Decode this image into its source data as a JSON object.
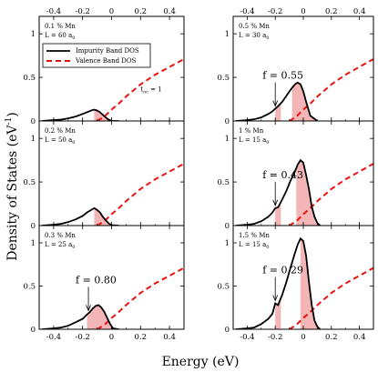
{
  "xlabel": "Energy (eV)",
  "ylabel": "Density of States (eV",
  "ylabel_sup": "-1",
  "ylabel_close": ")",
  "legend": {
    "impurity": "Impurity Band DOS",
    "valence": "Valence Band DOS"
  },
  "colors": {
    "impurity": "#000000",
    "valence": "#e8130f",
    "fill": "#f3b5b5"
  },
  "chart_data": [
    {
      "id": "p1",
      "type": "line",
      "col": 0,
      "row": 0,
      "xlim": [
        -0.5,
        0.5
      ],
      "ylim": [
        0,
        1.2
      ],
      "xticks": [
        "-0.4",
        "-0.2",
        "0",
        "0.2",
        "0.4"
      ],
      "yticks": [
        "0",
        "0.5",
        "1"
      ],
      "annotation_lines": [
        "0.1 % Mn",
        "L = 60 a"
      ],
      "annotation_sub": "0",
      "t_label": "t",
      "t_sub": "oc",
      "t_value": " = 1",
      "legend": "top-left",
      "impurity": {
        "x": [
          -0.48,
          -0.4,
          -0.35,
          -0.3,
          -0.25,
          -0.2,
          -0.17,
          -0.14,
          -0.12,
          -0.1,
          -0.08,
          -0.06,
          -0.04,
          -0.02,
          0,
          0.05
        ],
        "y": [
          0,
          0.01,
          0.015,
          0.03,
          0.05,
          0.08,
          0.1,
          0.12,
          0.13,
          0.12,
          0.1,
          0.07,
          0.04,
          0.015,
          0,
          0
        ]
      },
      "valence": {
        "x": [
          -0.1,
          -0.05,
          0,
          0.05,
          0.1,
          0.15,
          0.2,
          0.3,
          0.4,
          0.5
        ],
        "y": [
          0,
          0.05,
          0.13,
          0.2,
          0.28,
          0.35,
          0.42,
          0.53,
          0.62,
          0.71
        ]
      },
      "fill_from": -0.12
    },
    {
      "id": "p2",
      "type": "line",
      "col": 0,
      "row": 1,
      "xlim": [
        -0.5,
        0.5
      ],
      "ylim": [
        0,
        1.2
      ],
      "xticks": [
        "-0.4",
        "-0.2",
        "0",
        "0.2",
        "0.4"
      ],
      "yticks": [
        "0",
        "0.5",
        "1"
      ],
      "annotation_lines": [
        "0.2 % Mn",
        "L = 50 a"
      ],
      "annotation_sub": "0",
      "impurity": {
        "x": [
          -0.48,
          -0.4,
          -0.35,
          -0.3,
          -0.25,
          -0.2,
          -0.17,
          -0.14,
          -0.12,
          -0.1,
          -0.08,
          -0.06,
          -0.04,
          -0.02,
          0,
          0.05
        ],
        "y": [
          0,
          0.01,
          0.02,
          0.04,
          0.07,
          0.11,
          0.15,
          0.18,
          0.2,
          0.18,
          0.15,
          0.1,
          0.06,
          0.025,
          0.005,
          0
        ]
      },
      "valence": {
        "x": [
          -0.1,
          -0.05,
          0,
          0.05,
          0.1,
          0.15,
          0.2,
          0.3,
          0.4,
          0.5
        ],
        "y": [
          0,
          0.05,
          0.13,
          0.2,
          0.28,
          0.35,
          0.42,
          0.53,
          0.62,
          0.71
        ]
      },
      "fill_from": -0.12
    },
    {
      "id": "p3",
      "type": "line",
      "col": 0,
      "row": 2,
      "xlim": [
        -0.5,
        0.5
      ],
      "ylim": [
        0,
        1.2
      ],
      "xticks": [
        "-0.4",
        "-0.2",
        "0",
        "0.2",
        "0.4"
      ],
      "yticks": [
        "0",
        "0.5",
        "1"
      ],
      "annotation_lines": [
        "0.3 % Mn",
        "L = 25 a"
      ],
      "annotation_sub": "0",
      "f_label": "f = 0.80",
      "f_arrow_x": -0.16,
      "impurity": {
        "x": [
          -0.48,
          -0.4,
          -0.35,
          -0.3,
          -0.25,
          -0.2,
          -0.17,
          -0.15,
          -0.13,
          -0.11,
          -0.09,
          -0.07,
          -0.05,
          -0.03,
          -0.01,
          0.01,
          0.05
        ],
        "y": [
          0,
          0.01,
          0.02,
          0.04,
          0.08,
          0.12,
          0.17,
          0.2,
          0.24,
          0.27,
          0.28,
          0.25,
          0.2,
          0.13,
          0.06,
          0.01,
          0
        ]
      },
      "valence": {
        "x": [
          -0.1,
          -0.05,
          0,
          0.05,
          0.1,
          0.15,
          0.2,
          0.3,
          0.4,
          0.5
        ],
        "y": [
          0,
          0.05,
          0.13,
          0.2,
          0.28,
          0.35,
          0.42,
          0.53,
          0.62,
          0.71
        ]
      },
      "fill_from": -0.17
    },
    {
      "id": "p4",
      "type": "line",
      "col": 1,
      "row": 0,
      "xlim": [
        -0.5,
        0.5
      ],
      "ylim": [
        0,
        1.2
      ],
      "xticks": [
        "-0.4",
        "-0.2",
        "0",
        "0.2",
        "0.4"
      ],
      "yticks": [
        "0",
        "0.5",
        "1"
      ],
      "annotation_lines": [
        "0.5 % Mn",
        "L = 30 a"
      ],
      "annotation_sub": "0",
      "f_label": "f = 0.55",
      "f_arrow_x": -0.2,
      "impurity": {
        "x": [
          -0.48,
          -0.4,
          -0.35,
          -0.3,
          -0.25,
          -0.22,
          -0.2,
          -0.18,
          -0.15,
          -0.12,
          -0.09,
          -0.06,
          -0.04,
          -0.02,
          0,
          0.02,
          0.05,
          0.1
        ],
        "y": [
          0,
          0.01,
          0.02,
          0.04,
          0.08,
          0.11,
          0.14,
          0.17,
          0.22,
          0.29,
          0.36,
          0.42,
          0.44,
          0.42,
          0.34,
          0.22,
          0.06,
          0
        ]
      },
      "valence": {
        "x": [
          -0.1,
          -0.05,
          0,
          0.05,
          0.1,
          0.15,
          0.2,
          0.3,
          0.4,
          0.5
        ],
        "y": [
          0,
          0.05,
          0.13,
          0.2,
          0.28,
          0.35,
          0.42,
          0.53,
          0.62,
          0.71
        ]
      },
      "fill_from": -0.2,
      "fill_gap": [
        -0.16,
        -0.08
      ]
    },
    {
      "id": "p5",
      "type": "line",
      "col": 1,
      "row": 1,
      "xlim": [
        -0.5,
        0.5
      ],
      "ylim": [
        0,
        1.2
      ],
      "xticks": [
        "-0.4",
        "-0.2",
        "0",
        "0.2",
        "0.4"
      ],
      "yticks": [
        "0",
        "0.5",
        "1"
      ],
      "annotation_lines": [
        "1 % Mn",
        "L = 15 a"
      ],
      "annotation_sub": "0",
      "f_label": "f = 0.43",
      "f_arrow_x": -0.2,
      "impurity": {
        "x": [
          -0.48,
          -0.4,
          -0.35,
          -0.3,
          -0.25,
          -0.22,
          -0.2,
          -0.18,
          -0.15,
          -0.12,
          -0.09,
          -0.06,
          -0.04,
          -0.02,
          0,
          0.02,
          0.04,
          0.06,
          0.08,
          0.1,
          0.12
        ],
        "y": [
          0,
          0.01,
          0.02,
          0.05,
          0.1,
          0.15,
          0.2,
          0.21,
          0.3,
          0.4,
          0.52,
          0.62,
          0.7,
          0.75,
          0.72,
          0.58,
          0.42,
          0.22,
          0.1,
          0.03,
          0
        ]
      },
      "valence": {
        "x": [
          -0.1,
          -0.05,
          0,
          0.05,
          0.1,
          0.15,
          0.2,
          0.3,
          0.4,
          0.5
        ],
        "y": [
          0,
          0.05,
          0.13,
          0.2,
          0.28,
          0.35,
          0.42,
          0.53,
          0.62,
          0.71
        ]
      },
      "fill_from": -0.2,
      "fill_gap": [
        -0.16,
        -0.05
      ]
    },
    {
      "id": "p6",
      "type": "line",
      "col": 1,
      "row": 2,
      "xlim": [
        -0.5,
        0.5
      ],
      "ylim": [
        0,
        1.2
      ],
      "xticks": [
        "-0.4",
        "-0.2",
        "0",
        "0.2",
        "0.4"
      ],
      "yticks": [
        "0",
        "0.5",
        "1"
      ],
      "annotation_lines": [
        "1.5 % Mn",
        "L = 15 a"
      ],
      "annotation_sub": "0",
      "f_label": "f = 0.29",
      "f_arrow_x": -0.2,
      "impurity": {
        "x": [
          -0.48,
          -0.4,
          -0.35,
          -0.3,
          -0.25,
          -0.22,
          -0.2,
          -0.18,
          -0.15,
          -0.12,
          -0.09,
          -0.06,
          -0.04,
          -0.02,
          0,
          0.02,
          0.04,
          0.06,
          0.08,
          0.1,
          0.12
        ],
        "y": [
          0,
          0.01,
          0.02,
          0.06,
          0.12,
          0.18,
          0.3,
          0.28,
          0.4,
          0.55,
          0.72,
          0.88,
          0.98,
          1.05,
          1.02,
          0.85,
          0.55,
          0.28,
          0.1,
          0.03,
          0
        ]
      },
      "valence": {
        "x": [
          -0.1,
          -0.05,
          0,
          0.05,
          0.1,
          0.15,
          0.2,
          0.3,
          0.4,
          0.5
        ],
        "y": [
          0,
          0.05,
          0.13,
          0.2,
          0.28,
          0.35,
          0.42,
          0.53,
          0.62,
          0.71
        ]
      },
      "fill_from": -0.2,
      "fill_gap": [
        -0.16,
        -0.02
      ]
    }
  ]
}
